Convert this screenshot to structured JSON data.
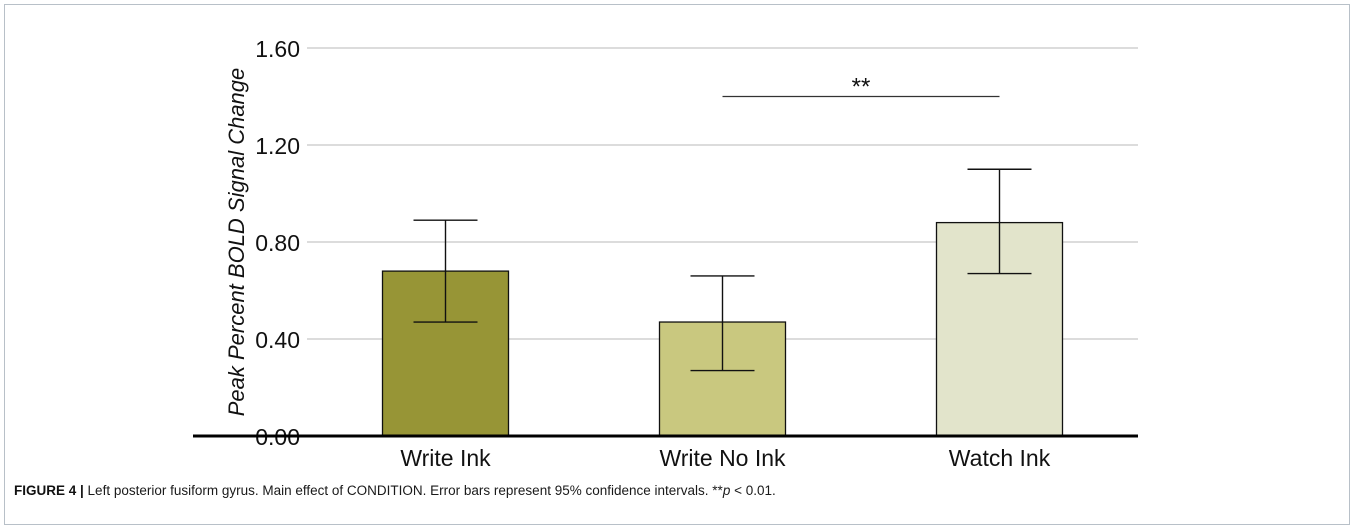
{
  "colors": {
    "bars": [
      "#979536",
      "#c9c87f",
      "#e2e4cb"
    ],
    "grid": "#c8c8c8",
    "axis": "#000000",
    "frame": "#b8c0c8"
  },
  "chart_data": {
    "type": "bar",
    "ylabel": "Peak Percent BOLD Signal Change",
    "xlabel": "",
    "ylim": [
      0,
      1.6
    ],
    "yticks": [
      "0.00",
      "0.40",
      "0.80",
      "1.20",
      "1.60"
    ],
    "yticks_values": [
      0,
      0.4,
      0.8,
      1.2,
      1.6
    ],
    "grid": true,
    "categories": [
      "Write Ink",
      "Write No Ink",
      "Watch Ink"
    ],
    "values": [
      0.68,
      0.47,
      0.88
    ],
    "error_low": [
      0.47,
      0.27,
      0.67
    ],
    "error_high": [
      0.89,
      0.66,
      1.1
    ],
    "significance": {
      "from": "Write No Ink",
      "to": "Watch Ink",
      "value": 1.4,
      "label": "**"
    }
  },
  "caption": {
    "label": "FIGURE 4 |",
    "text": " Left posterior fusiform gyrus. Main effect of CONDITION. Error bars represent 95% confidence intervals. **",
    "p_symbol": "p",
    "p_rest": " < 0.01."
  }
}
